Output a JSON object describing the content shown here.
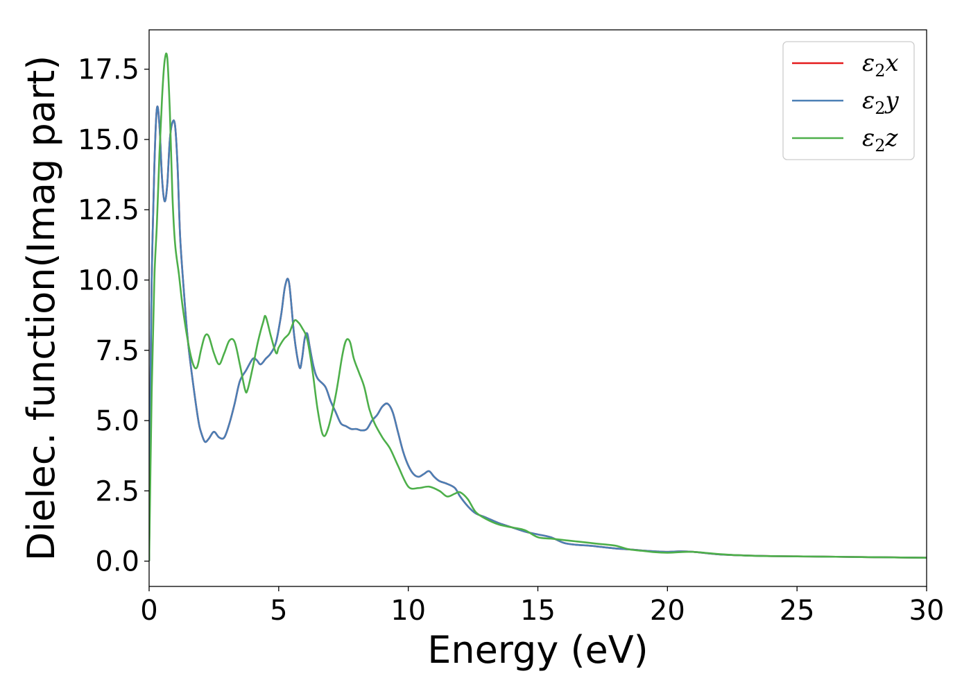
{
  "chart_data": {
    "type": "line",
    "title": "",
    "xlabel": "Energy (eV)",
    "ylabel": "Dielec. function(Imag part)",
    "xlim": [
      0,
      30
    ],
    "ylim": [
      -0.9,
      18.9
    ],
    "xticks": [
      0,
      5,
      10,
      15,
      20,
      25,
      30
    ],
    "xtick_labels": [
      "0",
      "5",
      "10",
      "15",
      "20",
      "25",
      "30"
    ],
    "yticks": [
      0,
      2.5,
      5,
      7.5,
      10,
      12.5,
      15,
      17.5
    ],
    "ytick_labels": [
      "0.0",
      "2.5",
      "5.0",
      "7.5",
      "10.0",
      "12.5",
      "15.0",
      "17.5"
    ],
    "grid": false,
    "legend_position": "top-right",
    "series": [
      {
        "name": "ε2x",
        "legend_main": "ε",
        "legend_sub": "2",
        "legend_tail": "x",
        "color": "#e41a1c",
        "x": [
          0,
          0.05,
          0.1,
          0.2,
          0.3,
          0.4,
          0.5,
          0.6,
          0.7,
          0.8,
          0.9,
          1.0,
          1.1,
          1.2,
          1.35,
          1.5,
          1.7,
          1.9,
          2.0,
          2.15,
          2.3,
          2.5,
          2.7,
          2.9,
          3.1,
          3.3,
          3.5,
          3.75,
          4.0,
          4.15,
          4.3,
          4.5,
          4.7,
          4.9,
          5.1,
          5.25,
          5.4,
          5.6,
          5.8,
          5.9,
          6.0,
          6.1,
          6.2,
          6.35,
          6.5,
          6.8,
          7.0,
          7.2,
          7.4,
          7.6,
          7.8,
          8.0,
          8.2,
          8.4,
          8.6,
          8.8,
          9.0,
          9.2,
          9.4,
          9.6,
          9.8,
          10.0,
          10.2,
          10.4,
          10.6,
          10.8,
          11.0,
          11.2,
          11.5,
          11.8,
          12.0,
          12.3,
          12.6,
          13.0,
          13.5,
          14.0,
          14.5,
          15.0,
          15.5,
          16.0,
          16.5,
          17.0,
          17.5,
          18.0,
          18.5,
          19.0,
          19.5,
          20.0,
          20.5,
          21.0,
          22.0,
          23.0,
          24.0,
          25.0,
          26.0,
          27.0,
          28.0,
          29.0,
          30.0
        ],
        "values": [
          0,
          6,
          10,
          14,
          16.1,
          15.5,
          13.6,
          12.8,
          13.4,
          15.0,
          15.6,
          15.5,
          14.0,
          11.5,
          9.5,
          7.8,
          6.3,
          5.0,
          4.6,
          4.25,
          4.35,
          4.6,
          4.4,
          4.4,
          4.9,
          5.6,
          6.4,
          6.8,
          7.2,
          7.15,
          7.0,
          7.2,
          7.4,
          7.8,
          8.8,
          9.8,
          9.9,
          8.0,
          6.9,
          7.2,
          7.9,
          8.1,
          7.6,
          6.9,
          6.5,
          6.2,
          5.7,
          5.3,
          4.9,
          4.8,
          4.7,
          4.7,
          4.65,
          4.7,
          5.0,
          5.2,
          5.5,
          5.6,
          5.3,
          4.6,
          3.9,
          3.4,
          3.1,
          3.0,
          3.1,
          3.2,
          3.0,
          2.85,
          2.75,
          2.6,
          2.3,
          1.95,
          1.7,
          1.55,
          1.35,
          1.2,
          1.05,
          0.95,
          0.85,
          0.65,
          0.58,
          0.55,
          0.5,
          0.45,
          0.42,
          0.38,
          0.35,
          0.33,
          0.35,
          0.33,
          0.24,
          0.2,
          0.18,
          0.17,
          0.16,
          0.15,
          0.14,
          0.13,
          0.12
        ]
      },
      {
        "name": "ε2y",
        "legend_main": "ε",
        "legend_sub": "2",
        "legend_tail": "y",
        "color": "#4a7fb5",
        "x": [
          0,
          0.05,
          0.1,
          0.2,
          0.3,
          0.4,
          0.5,
          0.6,
          0.7,
          0.8,
          0.9,
          1.0,
          1.1,
          1.2,
          1.35,
          1.5,
          1.7,
          1.9,
          2.0,
          2.15,
          2.3,
          2.5,
          2.7,
          2.9,
          3.1,
          3.3,
          3.5,
          3.75,
          4.0,
          4.15,
          4.3,
          4.5,
          4.7,
          4.9,
          5.1,
          5.25,
          5.4,
          5.6,
          5.8,
          5.9,
          6.0,
          6.1,
          6.2,
          6.35,
          6.5,
          6.8,
          7.0,
          7.2,
          7.4,
          7.6,
          7.8,
          8.0,
          8.2,
          8.4,
          8.6,
          8.8,
          9.0,
          9.2,
          9.4,
          9.6,
          9.8,
          10.0,
          10.2,
          10.4,
          10.6,
          10.8,
          11.0,
          11.2,
          11.5,
          11.8,
          12.0,
          12.3,
          12.6,
          13.0,
          13.5,
          14.0,
          14.5,
          15.0,
          15.5,
          16.0,
          16.5,
          17.0,
          17.5,
          18.0,
          18.5,
          19.0,
          19.5,
          20.0,
          20.5,
          21.0,
          22.0,
          23.0,
          24.0,
          25.0,
          26.0,
          27.0,
          28.0,
          29.0,
          30.0
        ],
        "values": [
          0,
          6,
          10,
          14,
          16.1,
          15.5,
          13.6,
          12.8,
          13.4,
          15.0,
          15.6,
          15.5,
          14.0,
          11.5,
          9.5,
          7.8,
          6.3,
          5.0,
          4.6,
          4.25,
          4.35,
          4.6,
          4.4,
          4.4,
          4.9,
          5.6,
          6.4,
          6.8,
          7.2,
          7.15,
          7.0,
          7.2,
          7.4,
          7.8,
          8.8,
          9.8,
          9.9,
          8.0,
          6.9,
          7.2,
          7.9,
          8.1,
          7.6,
          6.9,
          6.5,
          6.2,
          5.7,
          5.3,
          4.9,
          4.8,
          4.7,
          4.7,
          4.65,
          4.7,
          5.0,
          5.2,
          5.5,
          5.6,
          5.3,
          4.6,
          3.9,
          3.4,
          3.1,
          3.0,
          3.1,
          3.2,
          3.0,
          2.85,
          2.75,
          2.6,
          2.3,
          1.95,
          1.7,
          1.55,
          1.35,
          1.2,
          1.05,
          0.95,
          0.85,
          0.65,
          0.58,
          0.55,
          0.5,
          0.45,
          0.42,
          0.38,
          0.35,
          0.33,
          0.35,
          0.33,
          0.24,
          0.2,
          0.18,
          0.17,
          0.16,
          0.15,
          0.14,
          0.13,
          0.12
        ]
      },
      {
        "name": "ε2z",
        "legend_main": "ε",
        "legend_sub": "2",
        "legend_tail": "z",
        "color": "#4daf4a",
        "x": [
          0,
          0.1,
          0.2,
          0.3,
          0.4,
          0.5,
          0.6,
          0.7,
          0.8,
          0.9,
          1.0,
          1.15,
          1.3,
          1.5,
          1.7,
          1.85,
          2.0,
          2.15,
          2.3,
          2.5,
          2.7,
          2.9,
          3.1,
          3.3,
          3.5,
          3.7,
          3.8,
          4.0,
          4.2,
          4.4,
          4.5,
          4.7,
          4.9,
          5.0,
          5.2,
          5.4,
          5.6,
          5.75,
          5.9,
          6.1,
          6.3,
          6.5,
          6.7,
          6.9,
          7.2,
          7.45,
          7.6,
          7.75,
          7.9,
          8.1,
          8.3,
          8.5,
          8.7,
          9.0,
          9.3,
          9.6,
          10.0,
          10.4,
          10.8,
          11.2,
          11.5,
          11.8,
          12.0,
          12.3,
          12.6,
          13.0,
          13.5,
          14.0,
          14.5,
          15.0,
          15.5,
          16.0,
          16.5,
          17.0,
          17.5,
          18.0,
          18.5,
          19.0,
          19.5,
          20.0,
          20.5,
          21.0,
          22.0,
          23.0,
          24.0,
          25.0,
          26.0,
          27.0,
          28.0,
          29.0,
          30.0
        ],
        "values": [
          0,
          6,
          10,
          12,
          14.5,
          16.5,
          17.8,
          17.9,
          16.0,
          13.0,
          11.3,
          10.2,
          9.0,
          7.8,
          7.0,
          6.9,
          7.5,
          8.0,
          8.0,
          7.4,
          7.0,
          7.4,
          7.85,
          7.8,
          7.0,
          6.1,
          6.1,
          6.9,
          7.8,
          8.5,
          8.7,
          8.0,
          7.4,
          7.6,
          7.9,
          8.1,
          8.55,
          8.5,
          8.3,
          7.9,
          6.8,
          5.4,
          4.5,
          4.7,
          5.9,
          7.3,
          7.85,
          7.8,
          7.2,
          6.7,
          6.2,
          5.4,
          4.9,
          4.4,
          4.0,
          3.4,
          2.65,
          2.6,
          2.65,
          2.5,
          2.3,
          2.4,
          2.45,
          2.2,
          1.75,
          1.5,
          1.3,
          1.2,
          1.1,
          0.85,
          0.8,
          0.75,
          0.7,
          0.65,
          0.6,
          0.55,
          0.42,
          0.37,
          0.32,
          0.3,
          0.32,
          0.33,
          0.25,
          0.2,
          0.18,
          0.17,
          0.16,
          0.15,
          0.14,
          0.13,
          0.12
        ]
      }
    ]
  }
}
